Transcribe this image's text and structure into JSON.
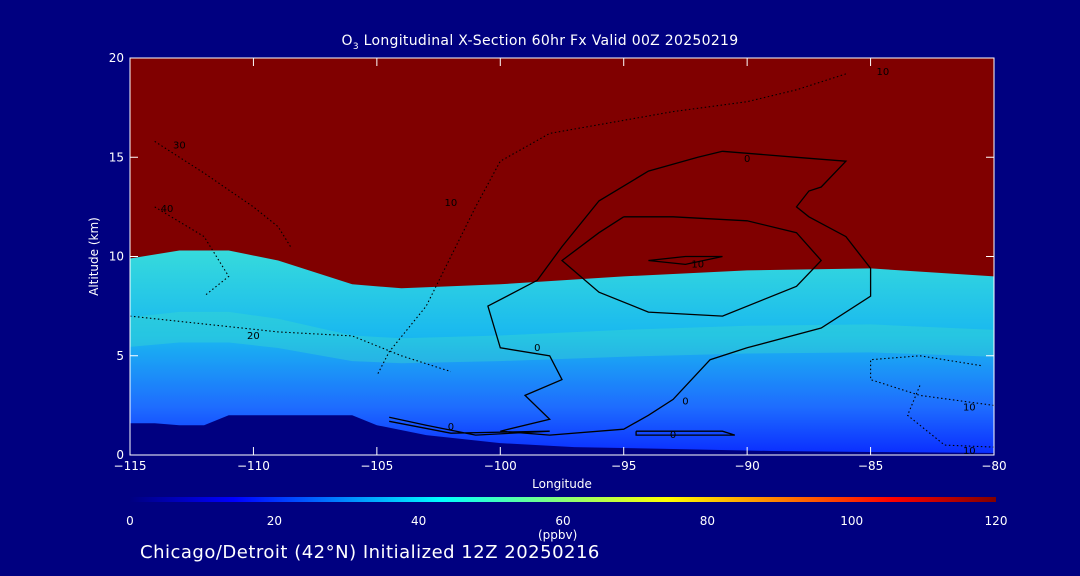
{
  "chart_data": {
    "type": "heatmap",
    "title": {
      "main": "Longitudinal X-Section 60hr  Fx Valid 00Z 20250219",
      "species_base": "O",
      "species_sub": "3"
    },
    "xlabel": "Longitude",
    "ylabel": "Altitude (km)",
    "xlim": [
      -115,
      -80
    ],
    "ylim": [
      0,
      20
    ],
    "x_ticks": [
      -115,
      -110,
      -105,
      -100,
      -95,
      -90,
      -85,
      -80
    ],
    "x_tick_labels": [
      "−115",
      "−110",
      "−105",
      "−100",
      "−95",
      "−90",
      "−85",
      "−80"
    ],
    "y_ticks": [
      0,
      5,
      10,
      15,
      20
    ],
    "y_tick_labels": [
      "0",
      "5",
      "10",
      "15",
      "20"
    ],
    "colorbar": {
      "min": 0,
      "max": 120,
      "ticks": [
        0,
        20,
        40,
        60,
        80,
        100,
        120
      ],
      "unit_label": "(ppbv)"
    },
    "ozone_field_description": {
      "low_level_ppbv": 30,
      "mid_level_ppbv": 45,
      "upper_level_ppbv": 120
    },
    "tropopause_km": [
      [
        -115,
        9.9
      ],
      [
        -113,
        10.3
      ],
      [
        -111,
        10.3
      ],
      [
        -109,
        9.8
      ],
      [
        -106,
        8.6
      ],
      [
        -104,
        8.4
      ],
      [
        -100,
        8.6
      ],
      [
        -95,
        9.0
      ],
      [
        -90,
        9.3
      ],
      [
        -85,
        9.4
      ],
      [
        -80,
        9.0
      ]
    ],
    "terrain_km": [
      [
        -115,
        1.6
      ],
      [
        -114,
        1.6
      ],
      [
        -113,
        1.5
      ],
      [
        -112,
        1.5
      ],
      [
        -111,
        2.0
      ],
      [
        -110,
        2.0
      ],
      [
        -106,
        2.0
      ],
      [
        -105,
        1.5
      ],
      [
        -103,
        1.0
      ],
      [
        -100,
        0.6
      ],
      [
        -97,
        0.4
      ],
      [
        -93,
        0.3
      ],
      [
        -89,
        0.2
      ],
      [
        -85,
        0.15
      ],
      [
        -80,
        0.1
      ]
    ],
    "contours": [
      {
        "label": "0",
        "style": "solid",
        "points": [
          [
            -91,
            15.3
          ],
          [
            -88,
            15.0
          ],
          [
            -86,
            14.8
          ],
          [
            -87,
            13.5
          ],
          [
            -87.5,
            13.3
          ],
          [
            -88,
            12.5
          ],
          [
            -87.5,
            12.0
          ],
          [
            -86,
            11.0
          ],
          [
            -85,
            9.4
          ],
          [
            -85,
            8.0
          ],
          [
            -87,
            6.4
          ],
          [
            -90,
            5.4
          ],
          [
            -91.5,
            4.8
          ],
          [
            -93,
            2.8
          ],
          [
            -94,
            2.0
          ],
          [
            -95,
            1.3
          ],
          [
            -98,
            1.0
          ],
          [
            -100,
            1.2
          ],
          [
            -98,
            1.8
          ],
          [
            -99,
            3.0
          ],
          [
            -97.5,
            3.8
          ],
          [
            -98,
            5.0
          ],
          [
            -100,
            5.4
          ],
          [
            -100.5,
            7.5
          ],
          [
            -98.5,
            8.8
          ],
          [
            -97.5,
            10.5
          ],
          [
            -96,
            12.8
          ],
          [
            -94,
            14.3
          ],
          [
            -92,
            15.0
          ],
          [
            -91,
            15.3
          ]
        ]
      },
      {
        "label": "-10",
        "style": "solid",
        "points": [
          [
            -95,
            12.0
          ],
          [
            -93,
            12.0
          ],
          [
            -90,
            11.8
          ],
          [
            -88,
            11.2
          ],
          [
            -87,
            9.8
          ],
          [
            -88,
            8.5
          ],
          [
            -91,
            7.0
          ],
          [
            -94,
            7.2
          ],
          [
            -96,
            8.2
          ],
          [
            -97.5,
            9.8
          ],
          [
            -96,
            11.2
          ],
          [
            -95,
            12.0
          ]
        ]
      },
      {
        "label": "-10",
        "style": "solid",
        "points": [
          [
            -94,
            9.8
          ],
          [
            -92.5,
            10.0
          ],
          [
            -91,
            10.0
          ],
          [
            -92.5,
            9.6
          ],
          [
            -94,
            9.8
          ]
        ]
      },
      {
        "label": "-20",
        "style": "dotted",
        "points": [
          [
            -115,
            7.0
          ],
          [
            -112,
            6.6
          ],
          [
            -109,
            6.2
          ],
          [
            -106,
            6.0
          ],
          [
            -104,
            5.0
          ],
          [
            -102,
            4.2
          ]
        ]
      },
      {
        "label": "-10",
        "style": "dotted",
        "points": [
          [
            -86,
            19.2
          ],
          [
            -88,
            18.4
          ],
          [
            -90,
            17.8
          ],
          [
            -93,
            17.3
          ],
          [
            -98,
            16.2
          ],
          [
            -100,
            14.8
          ],
          [
            -101,
            12.5
          ],
          [
            -102,
            10.0
          ],
          [
            -103,
            7.5
          ],
          [
            -104.5,
            5.2
          ],
          [
            -105,
            4.0
          ]
        ]
      },
      {
        "label": "-30",
        "style": "dotted",
        "points": [
          [
            -114,
            15.8
          ],
          [
            -112,
            14.2
          ],
          [
            -110,
            12.5
          ],
          [
            -109,
            11.5
          ],
          [
            -108.5,
            10.5
          ]
        ]
      },
      {
        "label": "-40",
        "style": "dotted",
        "points": [
          [
            -114,
            12.5
          ],
          [
            -112,
            11.0
          ],
          [
            -111,
            9.0
          ],
          [
            -112,
            8.0
          ]
        ]
      },
      {
        "label": "-10",
        "style": "dotted",
        "points": [
          [
            -80,
            2.5
          ],
          [
            -83,
            3.0
          ],
          [
            -85,
            3.8
          ],
          [
            -85,
            4.8
          ],
          [
            -83,
            5.0
          ],
          [
            -80.5,
            4.5
          ]
        ]
      },
      {
        "label": "-10",
        "style": "dotted",
        "points": [
          [
            -83,
            3.5
          ],
          [
            -83.5,
            2.0
          ],
          [
            -82,
            0.5
          ],
          [
            -80,
            0.4
          ]
        ]
      },
      {
        "label": "0",
        "style": "solid",
        "points": [
          [
            -94.5,
            1.2
          ],
          [
            -91,
            1.2
          ],
          [
            -90.5,
            1.0
          ],
          [
            -94.5,
            1.0
          ],
          [
            -94.5,
            1.2
          ]
        ]
      },
      {
        "label": "0",
        "style": "solid",
        "points": [
          [
            -104.5,
            1.9
          ],
          [
            -103,
            1.5
          ],
          [
            -101,
            1.0
          ],
          [
            -98,
            1.2
          ],
          [
            -102,
            1.1
          ],
          [
            -104.5,
            1.7
          ]
        ]
      }
    ],
    "contour_labels": [
      {
        "text": "0",
        "x": -90,
        "y": 14.9
      },
      {
        "text": "10",
        "x": -92,
        "y": 9.6
      },
      {
        "text": "0",
        "x": -98.5,
        "y": 5.4
      },
      {
        "text": "0",
        "x": -92.5,
        "y": 2.7
      },
      {
        "text": "0",
        "x": -93,
        "y": 1.0
      },
      {
        "text": "0",
        "x": -102,
        "y": 1.4
      },
      {
        "text": "20",
        "x": -110,
        "y": 6.0
      },
      {
        "text": "10",
        "x": -102,
        "y": 12.7
      },
      {
        "text": "30",
        "x": -113,
        "y": 15.6
      },
      {
        "text": "40",
        "x": -113.5,
        "y": 12.4
      },
      {
        "text": "10",
        "x": -84.5,
        "y": 19.3
      },
      {
        "text": "10",
        "x": -81,
        "y": 2.4
      },
      {
        "text": "10",
        "x": -81,
        "y": 0.2
      }
    ]
  },
  "footer": "Chicago/Detroit (42°N) Initialized 12Z 20250216"
}
